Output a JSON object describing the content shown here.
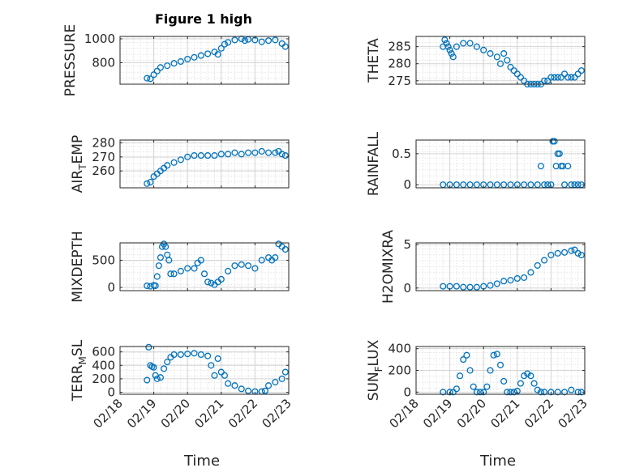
{
  "title": "Figure 1 high",
  "colors": {
    "marker": "#0072BD",
    "axis": "#262626",
    "grid": "#d4d4d4"
  },
  "chart_data": [
    {
      "type": "scatter",
      "ylabel": "PRESSURE",
      "ylim": [
        620,
        1020
      ],
      "yticks": [
        800,
        1000
      ],
      "xlim": [
        0,
        5
      ],
      "grid": true,
      "x": [
        0.8,
        0.9,
        1.0,
        1.1,
        1.2,
        1.4,
        1.6,
        1.8,
        2.0,
        2.2,
        2.4,
        2.6,
        2.8,
        2.9,
        3.0,
        3.1,
        3.2,
        3.4,
        3.6,
        3.7,
        3.8,
        4.0,
        4.2,
        4.4,
        4.6,
        4.8,
        4.9
      ],
      "y": [
        670,
        665,
        700,
        730,
        760,
        775,
        795,
        810,
        830,
        845,
        860,
        875,
        890,
        870,
        920,
        955,
        970,
        990,
        1000,
        985,
        995,
        990,
        975,
        985,
        990,
        960,
        935
      ]
    },
    {
      "type": "scatter",
      "ylabel": "THETA",
      "ylim": [
        274,
        288
      ],
      "yticks": [
        275,
        280,
        285
      ],
      "xlim": [
        0,
        5
      ],
      "grid": true,
      "x": [
        0.8,
        0.85,
        0.9,
        0.95,
        1.0,
        1.05,
        1.1,
        1.2,
        1.4,
        1.6,
        1.8,
        2.0,
        2.2,
        2.4,
        2.5,
        2.6,
        2.7,
        2.8,
        2.9,
        3.0,
        3.1,
        3.2,
        3.3,
        3.4,
        3.5,
        3.6,
        3.7,
        3.8,
        3.9,
        4.0,
        4.1,
        4.2,
        4.3,
        4.4,
        4.5,
        4.6,
        4.7,
        4.8,
        4.9
      ],
      "y": [
        285,
        287,
        286,
        285,
        284,
        283,
        282,
        285,
        286,
        286,
        285,
        284,
        283,
        282,
        280,
        283,
        281,
        279,
        278,
        277,
        276,
        275,
        274,
        274,
        274,
        274,
        274,
        275,
        275,
        276,
        276,
        276,
        276,
        277,
        276,
        276,
        276,
        277,
        278
      ]
    },
    {
      "type": "scatter",
      "ylabel": "AIR_TEMP",
      "ylim": [
        248,
        282
      ],
      "yticks": [
        260,
        270,
        280
      ],
      "xlim": [
        0,
        5
      ],
      "grid": true,
      "x": [
        0.8,
        0.9,
        1.0,
        1.1,
        1.2,
        1.3,
        1.4,
        1.6,
        1.8,
        2.0,
        2.2,
        2.4,
        2.6,
        2.8,
        3.0,
        3.2,
        3.4,
        3.6,
        3.8,
        4.0,
        4.2,
        4.4,
        4.6,
        4.7,
        4.8,
        4.9
      ],
      "y": [
        251,
        252,
        256,
        258,
        260,
        262,
        264,
        266,
        268,
        270,
        271,
        271,
        271,
        271,
        272,
        272,
        273,
        272,
        273,
        273,
        274,
        273,
        273,
        274,
        272,
        271
      ]
    },
    {
      "type": "scatter",
      "ylabel": "RAINFALL",
      "ylim": [
        -0.05,
        0.72
      ],
      "yticks": [
        0,
        0.5
      ],
      "xlim": [
        0,
        5
      ],
      "grid": true,
      "x": [
        0.8,
        1.0,
        1.2,
        1.4,
        1.6,
        1.8,
        2.0,
        2.2,
        2.4,
        2.6,
        2.8,
        3.0,
        3.2,
        3.4,
        3.6,
        3.7,
        3.8,
        3.9,
        4.0,
        4.05,
        4.1,
        4.15,
        4.2,
        4.25,
        4.3,
        4.35,
        4.4,
        4.5,
        4.6,
        4.7,
        4.8,
        4.9
      ],
      "y": [
        0,
        0,
        0,
        0,
        0,
        0,
        0,
        0,
        0,
        0,
        0,
        0,
        0,
        0,
        0,
        0.3,
        0,
        0,
        0,
        0.7,
        0.7,
        0.3,
        0.5,
        0.5,
        0.3,
        0.3,
        0,
        0.3,
        0,
        0,
        0,
        0
      ]
    },
    {
      "type": "scatter",
      "ylabel": "MIXDEPTH",
      "ylim": [
        -60,
        820
      ],
      "yticks": [
        0,
        500
      ],
      "xlim": [
        0,
        5
      ],
      "grid": true,
      "x": [
        0.8,
        0.9,
        1.0,
        1.05,
        1.1,
        1.15,
        1.2,
        1.25,
        1.3,
        1.35,
        1.4,
        1.45,
        1.5,
        1.6,
        1.8,
        2.0,
        2.2,
        2.3,
        2.4,
        2.5,
        2.6,
        2.7,
        2.8,
        2.9,
        3.0,
        3.2,
        3.4,
        3.6,
        3.8,
        4.0,
        4.2,
        4.4,
        4.5,
        4.6,
        4.7,
        4.8,
        4.9
      ],
      "y": [
        30,
        20,
        40,
        30,
        200,
        400,
        550,
        750,
        800,
        750,
        600,
        500,
        250,
        250,
        300,
        350,
        350,
        450,
        500,
        250,
        100,
        80,
        50,
        100,
        150,
        300,
        400,
        420,
        400,
        350,
        500,
        550,
        500,
        550,
        800,
        750,
        700
      ]
    },
    {
      "type": "scatter",
      "ylabel": "H2OMIXRA",
      "ylim": [
        -0.3,
        5.2
      ],
      "yticks": [
        0,
        5
      ],
      "xlim": [
        0,
        5
      ],
      "grid": true,
      "x": [
        0.8,
        1.0,
        1.2,
        1.4,
        1.6,
        1.8,
        2.0,
        2.2,
        2.4,
        2.6,
        2.8,
        3.0,
        3.2,
        3.4,
        3.6,
        3.8,
        4.0,
        4.2,
        4.4,
        4.6,
        4.7,
        4.8,
        4.9
      ],
      "y": [
        0.2,
        0.2,
        0.2,
        0.1,
        0.1,
        0.1,
        0.2,
        0.3,
        0.5,
        0.8,
        0.9,
        1.1,
        1.2,
        1.8,
        2.6,
        3.2,
        3.8,
        4.0,
        4.1,
        4.3,
        4.4,
        4.0,
        3.8
      ]
    },
    {
      "type": "scatter",
      "ylabel": "TERR_MSL",
      "ylim": [
        -30,
        680
      ],
      "yticks": [
        0,
        200,
        400,
        600
      ],
      "xlim": [
        0,
        5
      ],
      "grid": true,
      "x": [
        0.8,
        0.85,
        0.9,
        0.95,
        1.0,
        1.05,
        1.1,
        1.2,
        1.3,
        1.4,
        1.5,
        1.6,
        1.8,
        2.0,
        2.2,
        2.4,
        2.6,
        2.7,
        2.8,
        2.9,
        3.0,
        3.1,
        3.2,
        3.4,
        3.6,
        3.8,
        4.0,
        4.2,
        4.3,
        4.4,
        4.6,
        4.8,
        4.9
      ],
      "y": [
        180,
        670,
        400,
        380,
        370,
        250,
        200,
        220,
        350,
        450,
        520,
        560,
        560,
        570,
        580,
        560,
        540,
        400,
        250,
        500,
        300,
        250,
        130,
        100,
        50,
        20,
        10,
        10,
        20,
        100,
        150,
        200,
        300
      ]
    },
    {
      "type": "scatter",
      "ylabel": "SUN_FLUX",
      "ylim": [
        -20,
        420
      ],
      "yticks": [
        0,
        200,
        400
      ],
      "xlim": [
        0,
        5
      ],
      "grid": true,
      "x": [
        0.8,
        1.0,
        1.1,
        1.2,
        1.3,
        1.4,
        1.5,
        1.6,
        1.7,
        1.8,
        1.9,
        2.0,
        2.1,
        2.2,
        2.3,
        2.4,
        2.5,
        2.6,
        2.7,
        2.8,
        2.9,
        3.0,
        3.1,
        3.2,
        3.3,
        3.4,
        3.5,
        3.6,
        3.7,
        3.8,
        4.0,
        4.2,
        4.4,
        4.6,
        4.8,
        4.9
      ],
      "y": [
        0,
        0,
        0,
        30,
        150,
        300,
        340,
        200,
        50,
        0,
        0,
        0,
        50,
        200,
        340,
        350,
        250,
        100,
        0,
        0,
        0,
        10,
        80,
        150,
        170,
        150,
        80,
        20,
        0,
        0,
        0,
        0,
        0,
        20,
        0,
        0
      ]
    }
  ],
  "xaxis": {
    "ticks": [
      "02/18",
      "02/19",
      "02/20",
      "02/21",
      "02/22",
      "02/23"
    ],
    "label": "Time"
  }
}
